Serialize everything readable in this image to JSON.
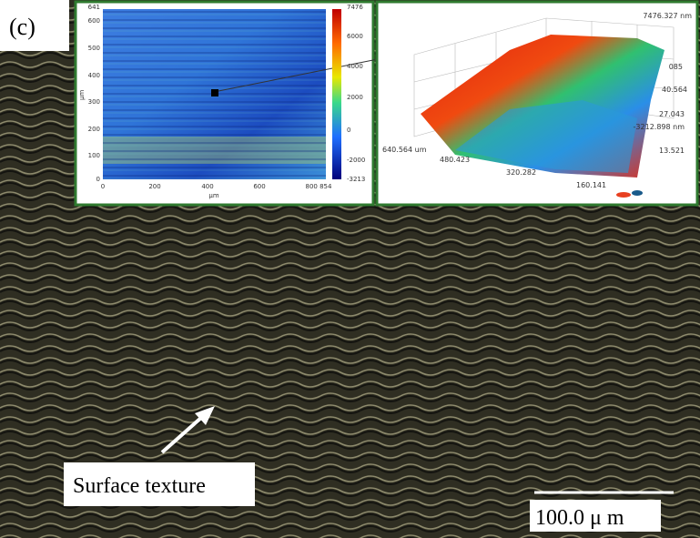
{
  "panel_label": "(c)",
  "annotation": "Surface texture",
  "scale_bar": "100.0 μ m",
  "map2d": {
    "y_ticks": [
      "641",
      "600",
      "500",
      "400",
      "300",
      "200",
      "100",
      "0"
    ],
    "y_label": "μm",
    "x_ticks": [
      "0",
      "200",
      "400",
      "600",
      "800 854"
    ],
    "x_label": "μm",
    "colorbar_ticks": [
      "7476",
      "6000",
      "4000",
      "2000",
      "0",
      "-2000",
      "-3213"
    ]
  },
  "map3d": {
    "labels": [
      "7476.327 nm",
      "085",
      "40.564",
      "27.043",
      "-3212.898 nm",
      "13.521",
      "640.564 um",
      "480.423",
      "320.282",
      "160.141"
    ]
  }
}
